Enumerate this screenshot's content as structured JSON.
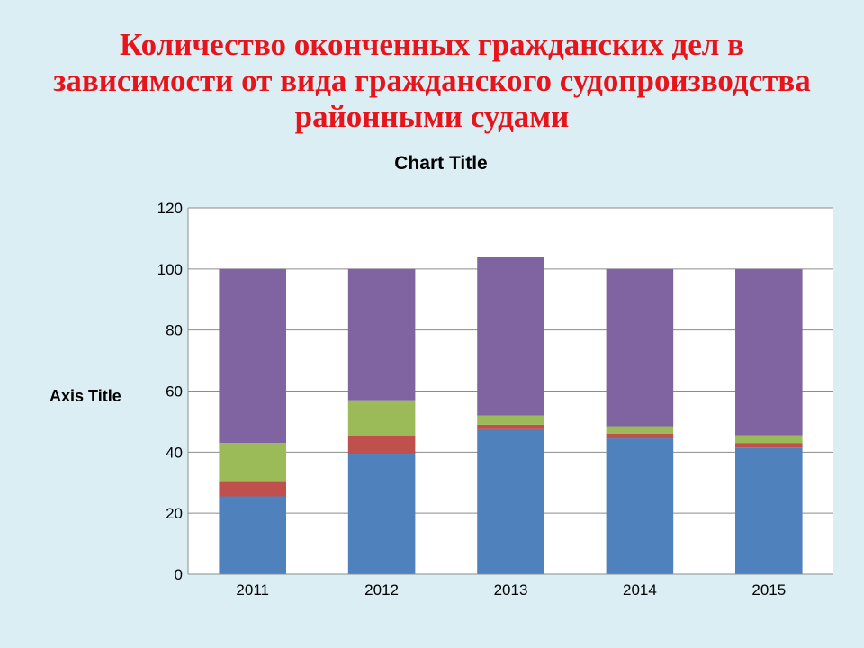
{
  "slide": {
    "title": "Количество оконченных гражданских дел в зависимости от вида гражданского судопроизводства районными судами"
  },
  "chart_data": {
    "type": "bar",
    "stacked": true,
    "title": "Chart Title",
    "xlabel": "",
    "ylabel": "Axis Title",
    "ylim": [
      0,
      120
    ],
    "yticks": [
      0,
      20,
      40,
      60,
      80,
      100,
      120
    ],
    "grid": true,
    "legend": "none",
    "categories": [
      "2011",
      "2012",
      "2013",
      "2014",
      "2015"
    ],
    "series": [
      {
        "color": "#4f81bd",
        "values": [
          25.5,
          39.5,
          47.5,
          44.5,
          41.5
        ]
      },
      {
        "color": "#c0504d",
        "values": [
          5,
          6,
          1.5,
          1.5,
          1.5
        ]
      },
      {
        "color": "#9bbb59",
        "values": [
          12.5,
          11.5,
          3,
          2.5,
          2.5
        ]
      },
      {
        "color": "#8064a2",
        "values": [
          57,
          43,
          52,
          51.5,
          54.5
        ]
      }
    ]
  }
}
